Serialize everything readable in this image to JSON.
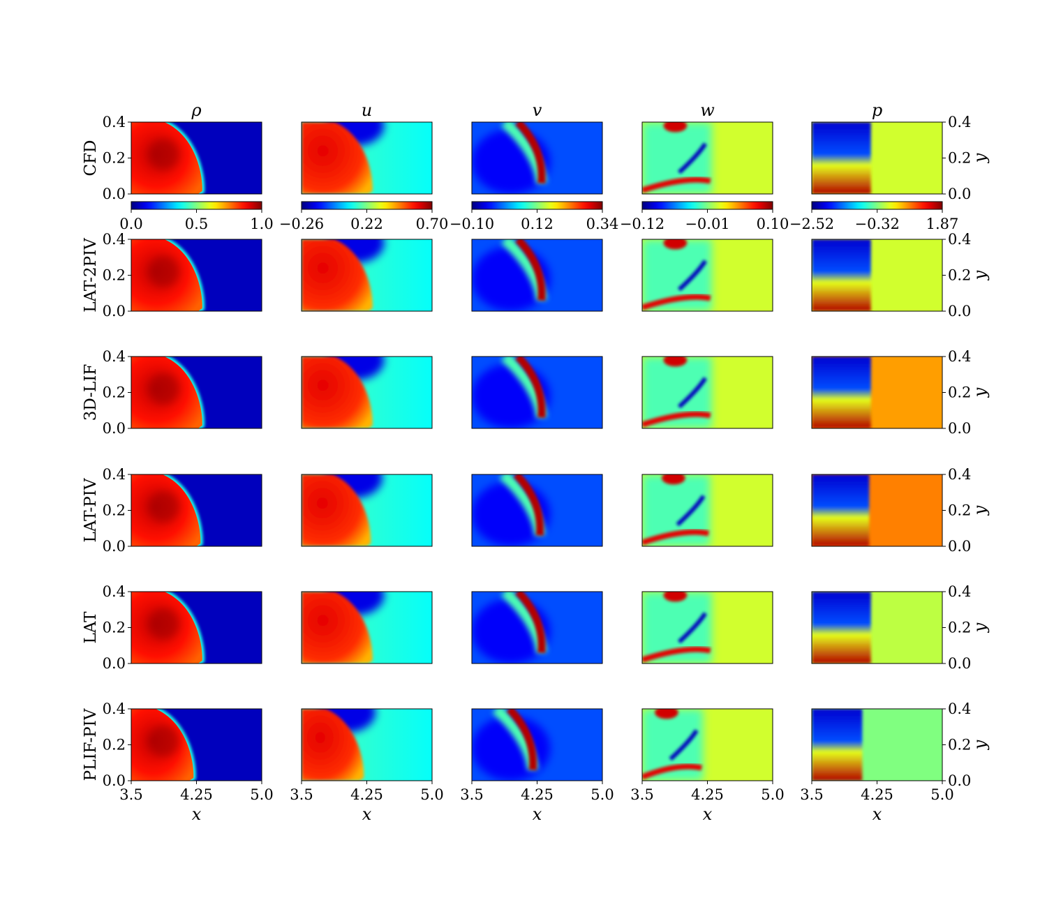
{
  "chart_data": {
    "type": "heatmap",
    "colormap": "jet",
    "variables": [
      {
        "key": "rho",
        "symbol": "ρ",
        "cbar_ticks": [
          0.0,
          0.5,
          1.0
        ],
        "cbar_tick_labels": [
          "0.0",
          "0.5",
          "1.0"
        ],
        "vmin": 0.0,
        "vmax": 1.0
      },
      {
        "key": "u",
        "symbol": "u",
        "cbar_ticks": [
          -0.26,
          0.22,
          0.7
        ],
        "cbar_tick_labels": [
          "−0.26",
          "0.22",
          "0.70"
        ],
        "vmin": -0.26,
        "vmax": 0.7
      },
      {
        "key": "v",
        "symbol": "v",
        "cbar_ticks": [
          -0.1,
          0.12,
          0.34
        ],
        "cbar_tick_labels": [
          "−0.10",
          "0.12",
          "0.34"
        ],
        "vmin": -0.1,
        "vmax": 0.34
      },
      {
        "key": "w",
        "symbol": "w",
        "cbar_ticks": [
          -0.12,
          -0.01,
          0.1
        ],
        "cbar_tick_labels": [
          "−0.12",
          "−0.01",
          "0.10"
        ],
        "vmin": -0.12,
        "vmax": 0.1
      },
      {
        "key": "p",
        "symbol": "p",
        "cbar_ticks": [
          -2.52,
          -0.32,
          1.87
        ],
        "cbar_tick_labels": [
          "−2.52",
          "−0.32",
          "1.87"
        ],
        "vmin": -2.52,
        "vmax": 1.87
      }
    ],
    "methods": [
      "CFD",
      "LAT-2PIV",
      "3D-LIF",
      "LAT-PIV",
      "LAT",
      "PLIF-PIV"
    ],
    "xlabel": "x",
    "ylabel": "y",
    "xlim": [
      3.5,
      5.0
    ],
    "ylim": [
      0.0,
      0.4
    ],
    "x_ticks": [
      3.5,
      4.25,
      5.0
    ],
    "x_tick_labels": [
      "3.5",
      "4.25",
      "5.0"
    ],
    "y_ticks": [
      0.0,
      0.2,
      0.4
    ],
    "y_tick_labels": [
      "0.0",
      "0.2",
      "0.4"
    ],
    "shock_front_x": [
      4.3,
      4.3,
      4.3,
      4.28,
      4.3,
      4.2
    ],
    "pressure_far_field_level": [
      0.58,
      0.58,
      0.72,
      0.75,
      0.56,
      0.5
    ],
    "grid": false
  }
}
